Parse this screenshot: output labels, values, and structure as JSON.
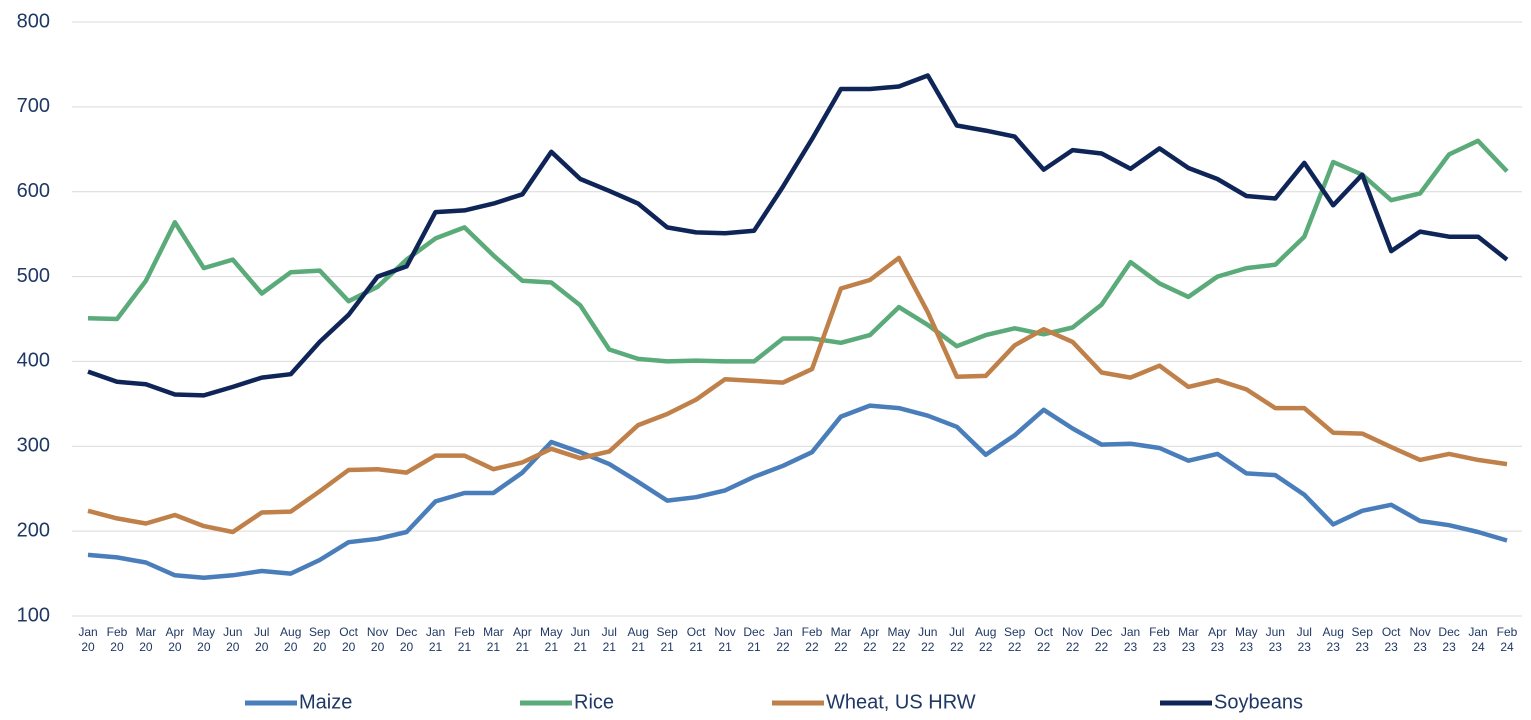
{
  "chart_data": {
    "type": "line",
    "categories": [
      "Jan 20",
      "Feb 20",
      "Mar 20",
      "Apr 20",
      "May 20",
      "Jun 20",
      "Jul 20",
      "Aug 20",
      "Sep 20",
      "Oct 20",
      "Nov 20",
      "Dec 20",
      "Jan 21",
      "Feb 21",
      "Mar 21",
      "Apr 21",
      "May 21",
      "Jun 21",
      "Jul 21",
      "Aug 21",
      "Sep 21",
      "Oct 21",
      "Nov 21",
      "Dec 21",
      "Jan 22",
      "Feb 22",
      "Mar 22",
      "Apr 22",
      "May 22",
      "Jun 22",
      "Jul 22",
      "Aug 22",
      "Sep 22",
      "Oct 22",
      "Nov 22",
      "Dec 22",
      "Jan 23",
      "Feb 23",
      "Mar 23",
      "Apr 23",
      "May 23",
      "Jun 23",
      "Jul 23",
      "Aug 23",
      "Sep 23",
      "Oct 23",
      "Nov 23",
      "Dec 23",
      "Jan 24",
      "Feb 24"
    ],
    "series": [
      {
        "name": "Maize",
        "color": "#4a7ebb",
        "values": [
          172,
          169,
          163,
          148,
          145,
          148,
          153,
          150,
          166,
          187,
          191,
          199,
          235,
          245,
          245,
          269,
          305,
          293,
          279,
          258,
          236,
          240,
          248,
          264,
          277,
          293,
          335,
          348,
          345,
          336,
          323,
          290,
          313,
          343,
          321,
          302,
          303,
          298,
          283,
          291,
          268,
          266,
          243,
          208,
          224,
          231,
          212,
          207,
          199,
          189
        ]
      },
      {
        "name": "Rice",
        "color": "#5aab79",
        "values": [
          451,
          450,
          495,
          564,
          510,
          520,
          480,
          505,
          507,
          471,
          488,
          520,
          545,
          558,
          525,
          495,
          493,
          466,
          414,
          403,
          400,
          401,
          400,
          400,
          427,
          427,
          422,
          431,
          464,
          443,
          418,
          431,
          439,
          432,
          440,
          467,
          517,
          492,
          476,
          500,
          510,
          514,
          547,
          635,
          620,
          590,
          598,
          644,
          660,
          624
        ]
      },
      {
        "name": "Wheat, US HRW",
        "color": "#c0804a",
        "values": [
          224,
          215,
          209,
          219,
          206,
          199,
          222,
          223,
          247,
          272,
          273,
          269,
          289,
          289,
          273,
          281,
          297,
          286,
          294,
          325,
          338,
          355,
          379,
          377,
          375,
          391,
          486,
          496,
          522,
          458,
          382,
          383,
          419,
          438,
          423,
          387,
          381,
          395,
          370,
          378,
          367,
          345,
          345,
          316,
          315,
          299,
          284,
          291,
          284,
          279
        ]
      },
      {
        "name": "Soybeans",
        "color": "#0f2557",
        "values": [
          388,
          376,
          373,
          361,
          360,
          370,
          381,
          385,
          423,
          455,
          500,
          512,
          576,
          578,
          586,
          597,
          647,
          615,
          601,
          586,
          558,
          552,
          551,
          554,
          606,
          662,
          721,
          721,
          724,
          737,
          678,
          672,
          665,
          626,
          649,
          645,
          627,
          651,
          628,
          615,
          595,
          592,
          634,
          584,
          620,
          530,
          553,
          547,
          547,
          520
        ]
      }
    ],
    "ylim": [
      100,
      800
    ],
    "yticks": [
      100,
      200,
      300,
      400,
      500,
      600,
      700,
      800
    ],
    "grid": true,
    "legend": "bottom"
  }
}
